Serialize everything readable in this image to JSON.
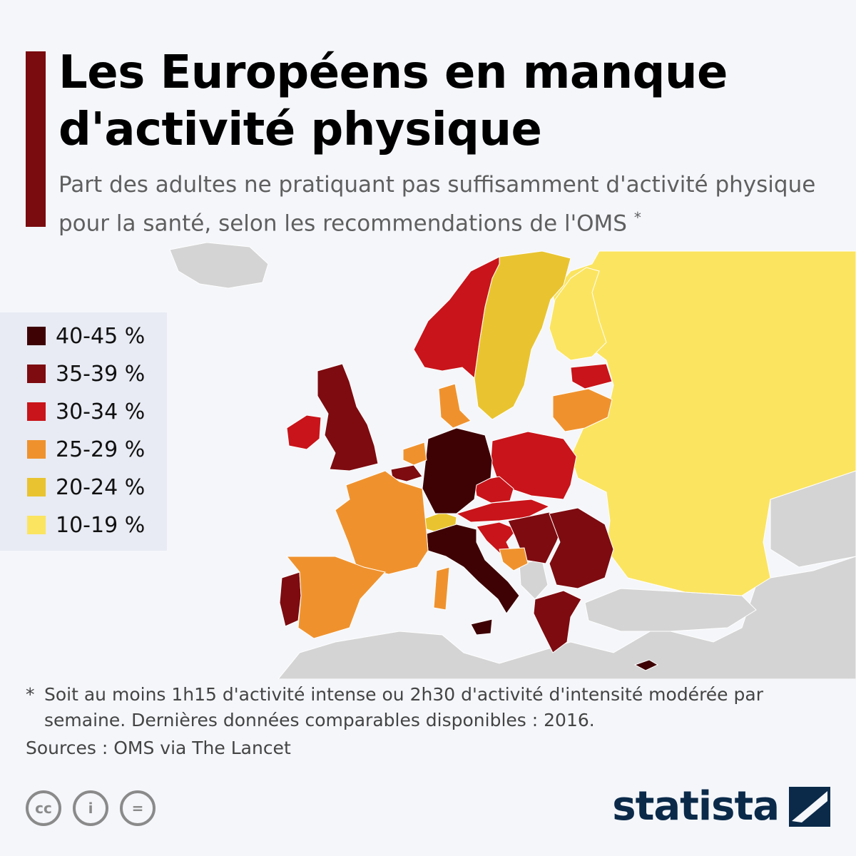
{
  "header": {
    "title": "Les Européens en manque d'activité physique",
    "subtitle": "Part des adultes ne pratiquant pas suffisamment d'activité physique pour la santé, selon les recommendations de l'OMS",
    "subtitle_marker": "*"
  },
  "legend": {
    "items": [
      {
        "label": "40-45 %",
        "color": "#3e0205"
      },
      {
        "label": "35-39 %",
        "color": "#7d0b10"
      },
      {
        "label": "30-34 %",
        "color": "#c8141a"
      },
      {
        "label": "25-29 %",
        "color": "#ef922e"
      },
      {
        "label": "20-24 %",
        "color": "#e9c430"
      },
      {
        "label": "10-19 %",
        "color": "#fbe460"
      }
    ]
  },
  "map": {
    "no_data_color": "#d4d4d4",
    "sea_color": "#f4f6fa",
    "countries": [
      {
        "name": "Allemagne",
        "band": "40-45 %"
      },
      {
        "name": "Italie",
        "band": "40-45 %"
      },
      {
        "name": "Chypre",
        "band": "40-45 %"
      },
      {
        "name": "Royaume-Uni",
        "band": "35-39 %"
      },
      {
        "name": "Portugal",
        "band": "35-39 %"
      },
      {
        "name": "Belgique",
        "band": "35-39 %"
      },
      {
        "name": "Roumanie",
        "band": "35-39 %"
      },
      {
        "name": "Bulgarie",
        "band": "35-39 %"
      },
      {
        "name": "Grèce",
        "band": "35-39 %"
      },
      {
        "name": "Serbie",
        "band": "35-39 %"
      },
      {
        "name": "Hongrie",
        "band": "35-39 %"
      },
      {
        "name": "Malte",
        "band": "35-39 %"
      },
      {
        "name": "Norvège",
        "band": "30-34 %"
      },
      {
        "name": "Irlande",
        "band": "30-34 %"
      },
      {
        "name": "Pologne",
        "band": "30-34 %"
      },
      {
        "name": "Tchéquie",
        "band": "30-34 %"
      },
      {
        "name": "Autriche",
        "band": "30-34 %"
      },
      {
        "name": "Slovaquie",
        "band": "30-34 %"
      },
      {
        "name": "Slovénie",
        "band": "30-34 %"
      },
      {
        "name": "Croatie",
        "band": "30-34 %"
      },
      {
        "name": "Estonie",
        "band": "30-34 %"
      },
      {
        "name": "France",
        "band": "25-29 %"
      },
      {
        "name": "Espagne",
        "band": "25-29 %"
      },
      {
        "name": "Pays-Bas",
        "band": "25-29 %"
      },
      {
        "name": "Danemark",
        "band": "25-29 %"
      },
      {
        "name": "Lettonie",
        "band": "25-29 %"
      },
      {
        "name": "Lituanie",
        "band": "25-29 %"
      },
      {
        "name": "Bosnie-Herzégovine",
        "band": "25-29 %"
      },
      {
        "name": "Suède",
        "band": "20-24 %"
      },
      {
        "name": "Suisse",
        "band": "20-24 %"
      },
      {
        "name": "Finlande",
        "band": "10-19 %"
      },
      {
        "name": "Russie",
        "band": "10-19 %"
      },
      {
        "name": "Biélorussie",
        "band": "10-19 %"
      },
      {
        "name": "Ukraine",
        "band": "10-19 %"
      },
      {
        "name": "Moldavie",
        "band": "10-19 %"
      }
    ]
  },
  "footnote": {
    "marker": "*",
    "text": "Soit au moins 1h15 d'activité intense ou 2h30 d'activité d'intensité modérée par semaine. Dernières données comparables disponibles : 2016."
  },
  "sources": "Sources : OMS via The Lancet",
  "license_icons": [
    "creative-commons-icon",
    "attribution-icon",
    "no-derivatives-icon"
  ],
  "license_icon_glyphs": [
    "cc",
    "i",
    "="
  ],
  "brand": {
    "name": "statista"
  }
}
